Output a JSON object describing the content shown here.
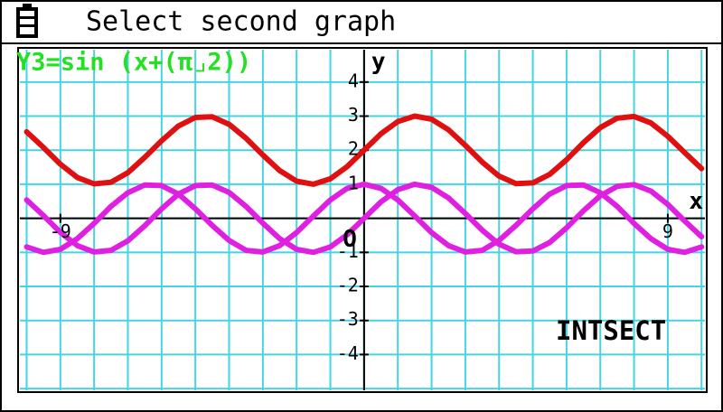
{
  "header": {
    "title": "Select second graph"
  },
  "formula": "Y3=sin (x+(π⌟2))",
  "status": "INTSECT",
  "chart_data": {
    "type": "line",
    "x_label": "x",
    "y_label": "y",
    "origin_label": "O",
    "xlim": [
      -10.2,
      10.1
    ],
    "ylim": [
      -5.05,
      4.95
    ],
    "xticks": [
      -9,
      9
    ],
    "yticks": [
      -4,
      -3,
      -2,
      -1,
      1,
      2,
      3,
      4
    ],
    "grid": true,
    "grid_step": 1,
    "grid_color": "#44d4e4",
    "x": [
      -10,
      -9.5,
      -9,
      -8.5,
      -8,
      -7.5,
      -7,
      -6.5,
      -6,
      -5.5,
      -5,
      -4.5,
      -4,
      -3.5,
      -3,
      -2.5,
      -2,
      -1.5,
      -1,
      -0.5,
      0,
      0.5,
      1,
      1.5,
      2,
      2.5,
      3,
      3.5,
      4,
      4.5,
      5,
      5.5,
      6,
      6.5,
      7,
      7.5,
      8,
      8.5,
      9,
      9.5,
      10
    ],
    "series": [
      {
        "color": "#e01010",
        "values": [
          2.54,
          2.08,
          1.59,
          1.2,
          1.01,
          1.06,
          1.34,
          1.79,
          2.28,
          2.71,
          2.96,
          2.98,
          2.76,
          2.35,
          1.86,
          1.4,
          1.09,
          1.0,
          1.16,
          1.52,
          2.0,
          2.48,
          2.84,
          3.0,
          2.91,
          2.6,
          2.14,
          1.65,
          1.24,
          1.02,
          1.04,
          1.29,
          1.72,
          2.22,
          2.66,
          2.94,
          2.99,
          2.8,
          2.41,
          1.93,
          1.46
        ]
      },
      {
        "color": "#e020e0",
        "values": [
          0.54,
          0.08,
          -0.41,
          -0.8,
          -0.99,
          -0.94,
          -0.66,
          -0.22,
          0.28,
          0.71,
          0.96,
          0.98,
          0.76,
          0.35,
          -0.14,
          -0.6,
          -0.91,
          -1.0,
          -0.84,
          -0.48,
          0.0,
          0.48,
          0.84,
          1.0,
          0.91,
          0.6,
          0.14,
          -0.35,
          -0.76,
          -0.98,
          -0.96,
          -0.71,
          -0.28,
          0.22,
          0.66,
          0.94,
          0.99,
          0.8,
          0.41,
          -0.08,
          -0.54
        ]
      },
      {
        "color": "#e020e0",
        "values": [
          -0.84,
          -1.0,
          -0.91,
          -0.6,
          -0.15,
          0.35,
          0.75,
          0.98,
          0.96,
          0.71,
          0.28,
          -0.21,
          -0.65,
          -0.94,
          -0.99,
          -0.8,
          -0.42,
          0.07,
          0.54,
          0.88,
          1.0,
          0.88,
          0.54,
          0.07,
          -0.42,
          -0.8,
          -0.99,
          -0.94,
          -0.65,
          -0.21,
          0.28,
          0.71,
          0.96,
          0.98,
          0.75,
          0.35,
          -0.15,
          -0.6,
          -0.91,
          -1.0,
          -0.84
        ]
      }
    ]
  }
}
